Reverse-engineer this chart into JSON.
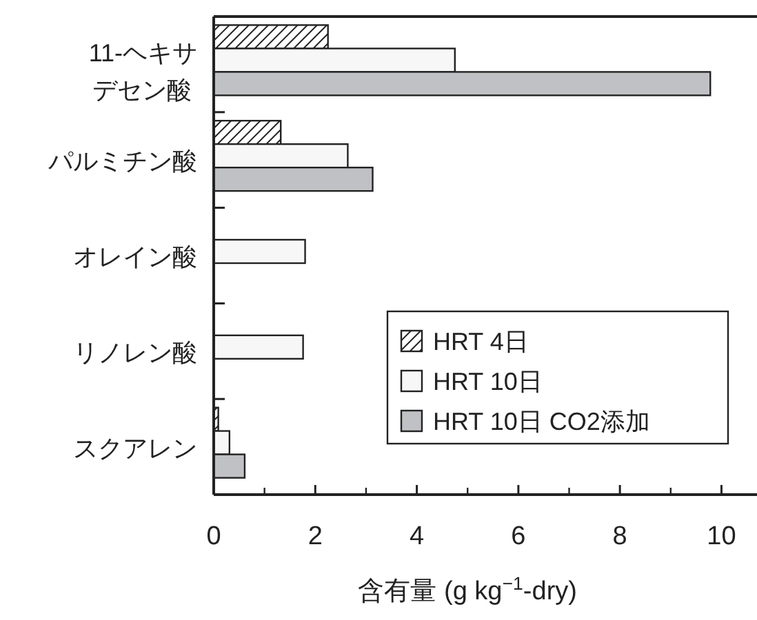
{
  "chart_data": {
    "type": "bar",
    "orientation": "horizontal",
    "xlabel": "含有量 (g kg$^{−1}$-dry)",
    "categories": [
      "11-ヘキサデセン酸",
      "パルミチン酸",
      "オレイン酸",
      "リノレン酸",
      "スクアレン"
    ],
    "series": [
      {
        "name": "HRT 4日",
        "color": "#222222",
        "values": [
          2.25,
          1.32,
          null,
          null,
          0.09
        ]
      },
      {
        "name": "HRT 10日",
        "color": "#f7f7f7",
        "values": [
          4.75,
          2.64,
          1.8,
          1.76,
          0.31
        ]
      },
      {
        "name": "HRT 10日 CO2添加",
        "color": "#c0c1c4",
        "values": [
          9.78,
          3.13,
          null,
          null,
          0.61
        ]
      }
    ],
    "xlim": [
      0,
      10.7
    ],
    "xticks": [
      0,
      2,
      4,
      6,
      8,
      10
    ],
    "grid": false,
    "legend": "bottom right"
  }
}
